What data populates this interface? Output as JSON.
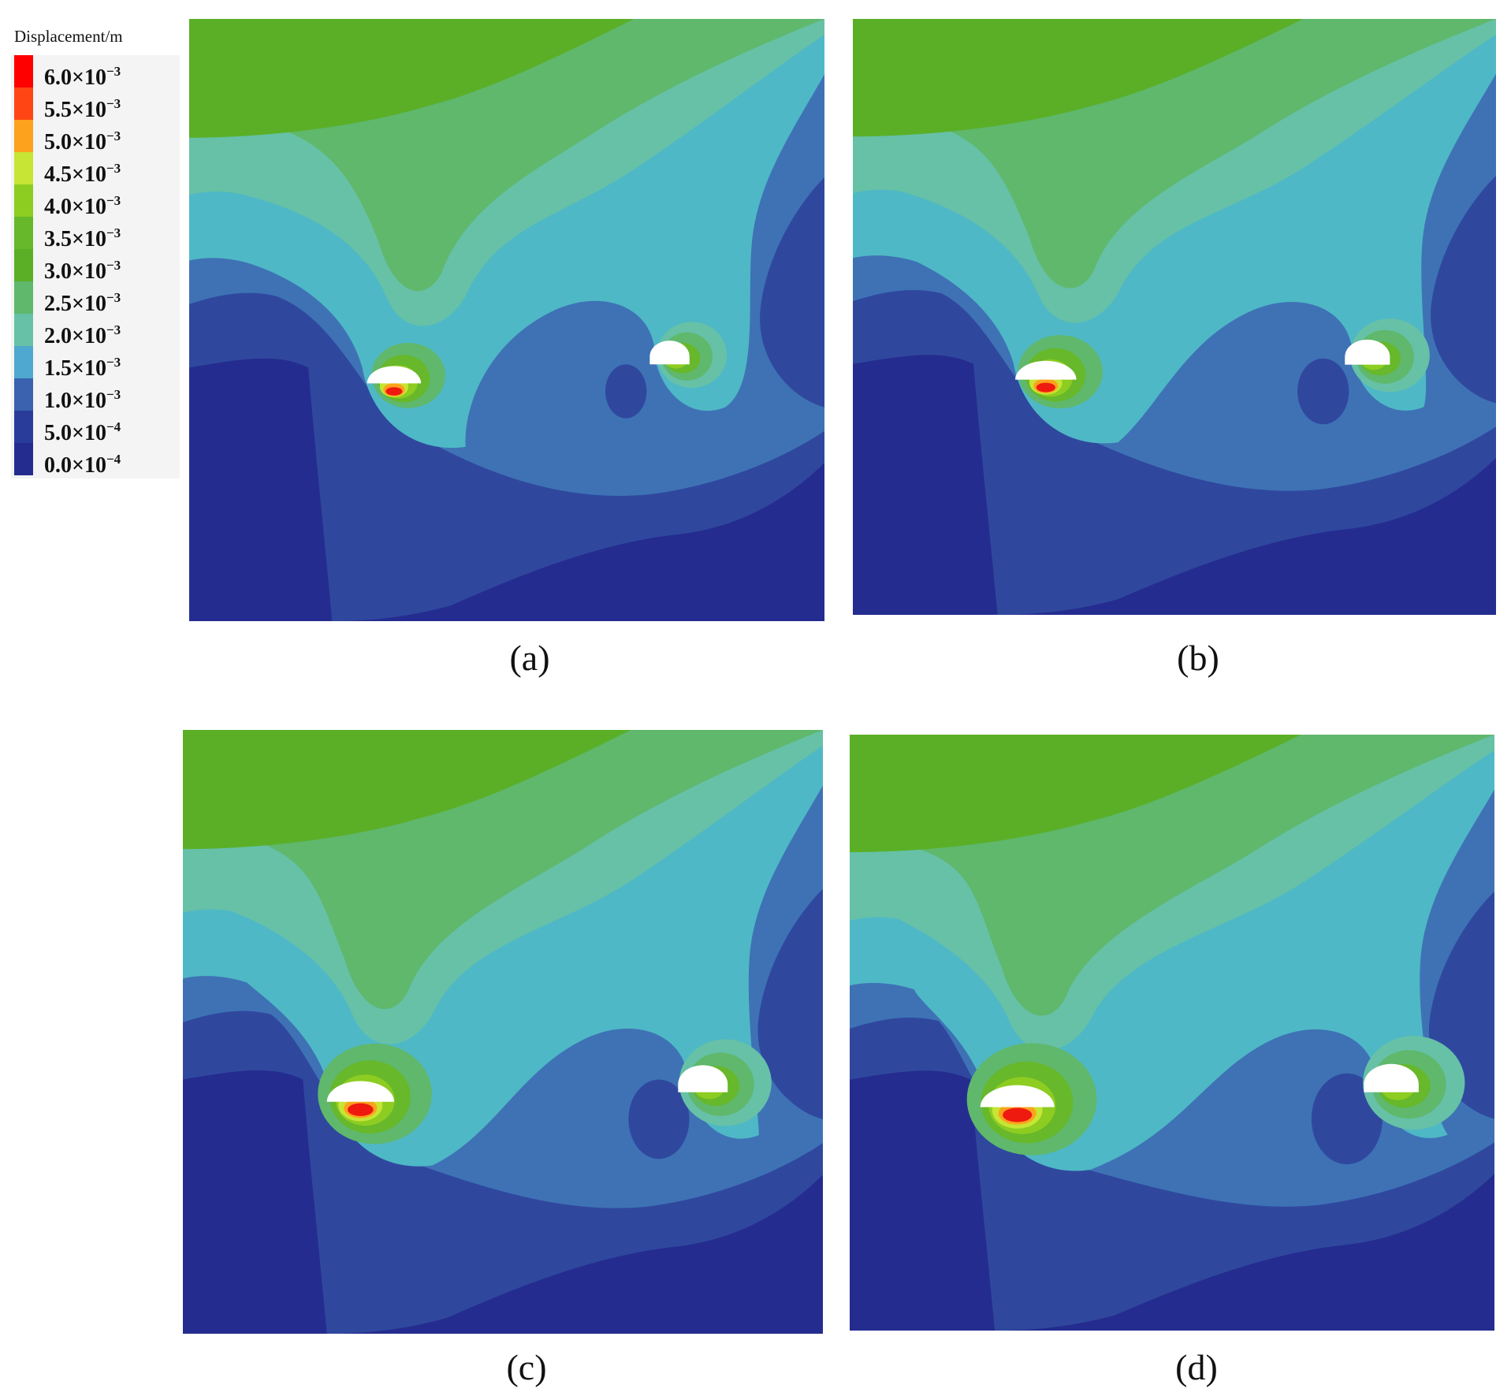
{
  "legend": {
    "title": "Displacement/m",
    "entries": [
      {
        "mantissa": "6.0×10",
        "exp": "−3",
        "color": "#fe0000"
      },
      {
        "mantissa": "5.5×10",
        "exp": "−3",
        "color": "#ff4513"
      },
      {
        "mantissa": "5.0×10",
        "exp": "−3",
        "color": "#fda21d"
      },
      {
        "mantissa": "4.5×10",
        "exp": "−3",
        "color": "#c6e534"
      },
      {
        "mantissa": "4.0×10",
        "exp": "−3",
        "color": "#8dcc21"
      },
      {
        "mantissa": "3.5×10",
        "exp": "−3",
        "color": "#67b82a"
      },
      {
        "mantissa": "3.0×10",
        "exp": "−3",
        "color": "#5aaf27"
      },
      {
        "mantissa": "2.5×10",
        "exp": "−3",
        "color": "#5fb86c"
      },
      {
        "mantissa": "2.0×10",
        "exp": "−3",
        "color": "#66c1a7"
      },
      {
        "mantissa": "1.5×10",
        "exp": "−3",
        "color": "#4fa8cf"
      },
      {
        "mantissa": "1.0×10",
        "exp": "−3",
        "color": "#3a62ae"
      },
      {
        "mantissa": "5.0×10",
        "exp": "−4",
        "color": "#2a3c9a"
      },
      {
        "mantissa": "0.0×10",
        "exp": "−4",
        "color": "#252c8f"
      }
    ]
  },
  "panels": [
    {
      "caption": "(a)"
    },
    {
      "caption": "(b)"
    },
    {
      "caption": "(c)"
    },
    {
      "caption": "(d)"
    }
  ],
  "colors": {
    "band_top": "#5aaf27",
    "band_2": "#5fb86c",
    "band_3": "#66c1a7",
    "band_4": "#4fb8c6",
    "band_5": "#3e72b5",
    "band_6": "#2f489e",
    "band_bottom": "#252c8f",
    "hot_red": "#ee1a10",
    "hot_orange": "#fda21d",
    "hot_yellow": "#c6e534",
    "opening_fill": "#ffffff"
  }
}
